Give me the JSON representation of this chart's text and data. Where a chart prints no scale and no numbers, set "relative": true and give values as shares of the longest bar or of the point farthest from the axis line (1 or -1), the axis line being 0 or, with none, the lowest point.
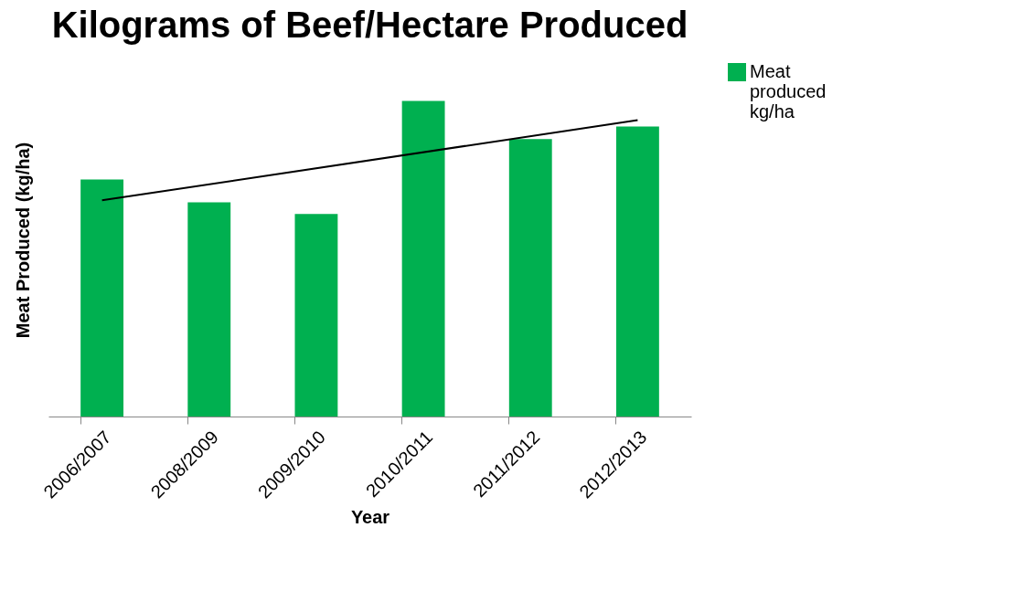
{
  "chart_data": {
    "type": "bar",
    "title": "Kilograms of Beef/Hectare Produced",
    "xlabel": "Year",
    "ylabel": "Meat Produced (kg/ha)",
    "relative": true,
    "legend": "right",
    "grid": false,
    "categories": [
      "2006/2007",
      "2008/2009",
      "2009/2010",
      "2010/2011",
      "2011/2012",
      "2012/2013"
    ],
    "series": [
      {
        "name": "Meat produced kg/ha",
        "color": "#00b050",
        "values": [
          0.751,
          0.679,
          0.642,
          1,
          0.879,
          0.919
        ]
      },
      {
        "type": "line",
        "color": "#000000",
        "x": [
          "2006/2007",
          "2012/2013"
        ],
        "values": [
          0.685,
          0.939
        ]
      }
    ]
  }
}
